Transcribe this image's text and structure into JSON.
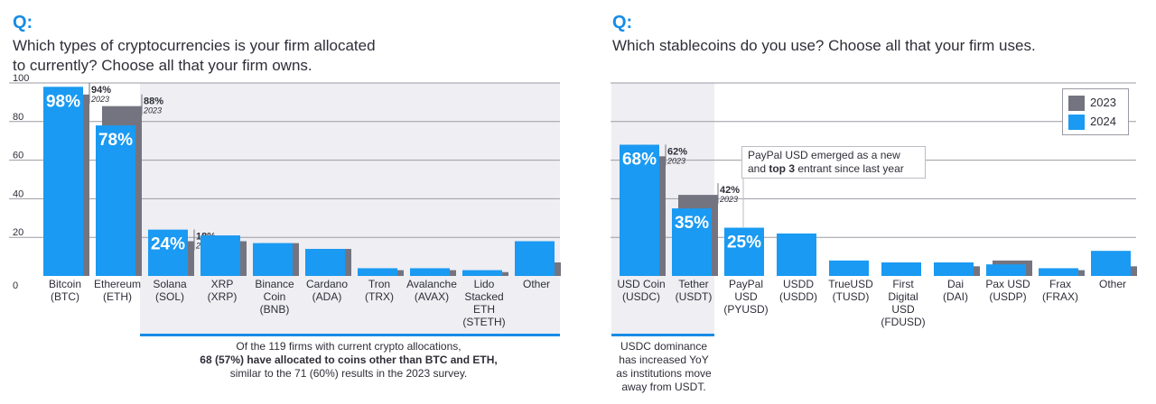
{
  "left": {
    "q_marker": "Q:",
    "question_line1": "Which types of cryptocurrencies is your firm allocated",
    "question_line2": "to currently? Choose all that your firm owns.",
    "note_line1": "Of the 119 firms with current crypto allocations,",
    "note_line2": "68 (57%) have allocated to coins other than BTC and ETH,",
    "note_line3": "similar to the 71 (60%) results in the 2023 survey."
  },
  "right": {
    "q_marker": "Q:",
    "question": "Which stablecoins do you use? Choose all that your firm uses.",
    "note_line1": "USDC dominance",
    "note_line2": "has increased YoY",
    "note_line3": "as institutions move",
    "note_line4": "away from USDT.",
    "callout_line1": "PayPal USD emerged as a new",
    "callout_line2_pre": "and ",
    "callout_line2_bold": "top 3",
    "callout_line2_post": " entrant since last year"
  },
  "legend": {
    "items": [
      "2023",
      "2024"
    ]
  },
  "colors": {
    "y2023": "#747480",
    "y2024": "#1a9af2",
    "accent": "#188ce5",
    "highlight": "#eeeef3",
    "grid": "#9b9ba3"
  },
  "chart_data": [
    {
      "type": "bar",
      "ylim": [
        0,
        100
      ],
      "yticks": [
        "0",
        "20",
        "40",
        "60",
        "80",
        "100"
      ],
      "grid": true,
      "legend": "top-right",
      "categories": [
        [
          "Bitcoin",
          "(BTC)"
        ],
        [
          "Ethereum",
          "(ETH)"
        ],
        [
          "Solana",
          "(SOL)"
        ],
        [
          "XRP",
          "(XRP)"
        ],
        [
          "Binance",
          "Coin",
          "(BNB)"
        ],
        [
          "Cardano",
          "(ADA)"
        ],
        [
          "Tron",
          "(TRX)"
        ],
        [
          "Avalanche",
          "(AVAX)"
        ],
        [
          "Lido",
          "Stacked",
          "ETH",
          "(STETH)"
        ],
        [
          "Other"
        ]
      ],
      "series": [
        {
          "name": "2023",
          "values": [
            94,
            88,
            18,
            18,
            17,
            14,
            3,
            3,
            2,
            7
          ]
        },
        {
          "name": "2024",
          "values": [
            98,
            78,
            24,
            21,
            17,
            14,
            4,
            4,
            3,
            18
          ]
        }
      ],
      "labels_2024": [
        "98%",
        "78%",
        "24%",
        "",
        "",
        "",
        "",
        "",
        "",
        ""
      ],
      "labels_2023": [
        "94%",
        "88%",
        "18%",
        "",
        "",
        "",
        "",
        "",
        "",
        ""
      ],
      "labels_2023_sub": [
        "2023",
        "2023",
        "2023",
        "",
        "",
        "",
        "",
        "",
        "",
        ""
      ],
      "highlight_range": [
        2,
        9
      ]
    },
    {
      "type": "bar",
      "ylim": [
        0,
        100
      ],
      "grid": true,
      "categories": [
        [
          "USD Coin",
          "(USDC)"
        ],
        [
          "Tether",
          "(USDT)"
        ],
        [
          "PayPal",
          "USD",
          "(PYUSD)"
        ],
        [
          "USDD",
          "(USDD)"
        ],
        [
          "TrueUSD",
          "(TUSD)"
        ],
        [
          "First",
          "Digital",
          "USD",
          "(FDUSD)"
        ],
        [
          "Dai",
          "(DAI)"
        ],
        [
          "Pax USD",
          "(USDP)"
        ],
        [
          "Frax",
          "(FRAX)"
        ],
        [
          "Other"
        ]
      ],
      "series": [
        {
          "name": "2023",
          "values": [
            62,
            42,
            0,
            0,
            0,
            0,
            5,
            8,
            3,
            5
          ]
        },
        {
          "name": "2024",
          "values": [
            68,
            35,
            25,
            22,
            8,
            7,
            7,
            6,
            4,
            13
          ]
        }
      ],
      "labels_2024": [
        "68%",
        "35%",
        "25%",
        "",
        "",
        "",
        "",
        "",
        "",
        ""
      ],
      "labels_2023": [
        "62%",
        "42%",
        "",
        "",
        "",
        "",
        "",
        "",
        "",
        ""
      ],
      "labels_2023_sub": [
        "2023",
        "2023",
        "",
        "",
        "",
        "",
        "",
        "",
        "",
        ""
      ],
      "highlight_range": [
        0,
        0
      ]
    }
  ]
}
